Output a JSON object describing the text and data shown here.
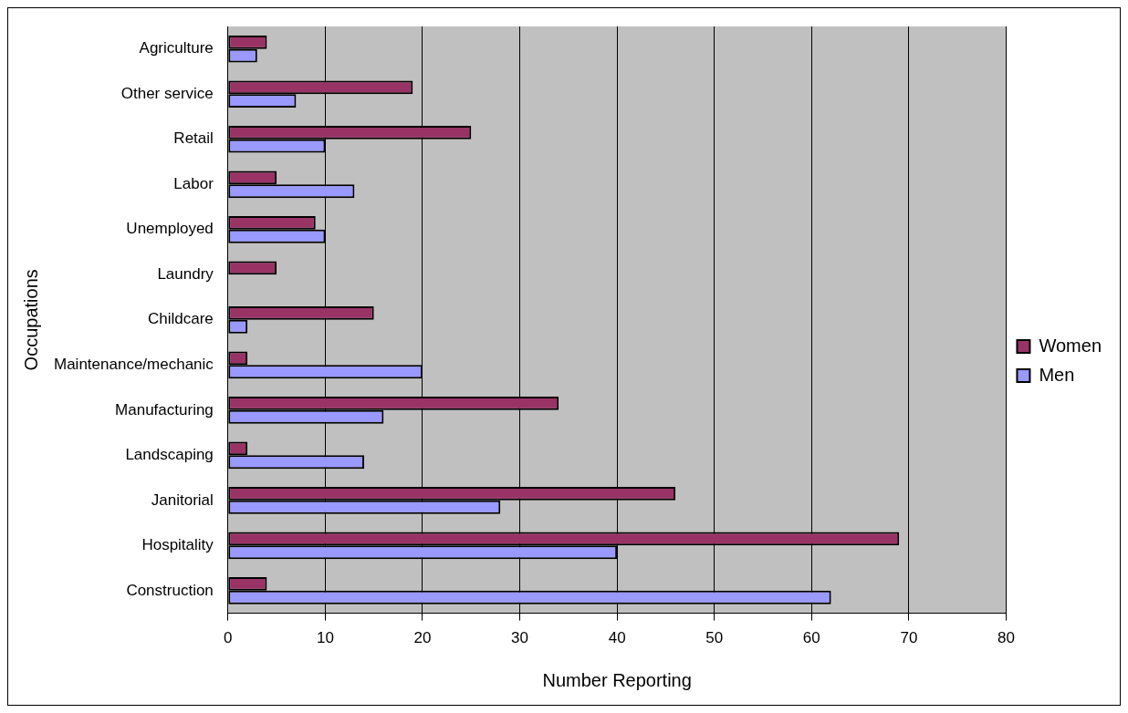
{
  "chart_data": {
    "type": "bar",
    "orientation": "horizontal",
    "xlabel": "Number Reporting",
    "ylabel": "Occupations",
    "categories": [
      "Agriculture",
      "Other service",
      "Retail",
      "Labor",
      "Unemployed",
      "Laundry",
      "Childcare",
      "Maintenance/mechanic",
      "Manufacturing",
      "Landscaping",
      "Janitorial",
      "Hospitality",
      "Construction"
    ],
    "series": [
      {
        "name": "Women",
        "color": "#993366",
        "values": [
          4,
          19,
          25,
          5,
          9,
          5,
          15,
          2,
          34,
          2,
          46,
          69,
          4
        ]
      },
      {
        "name": "Men",
        "color": "#9999ff",
        "values": [
          3,
          7,
          10,
          13,
          10,
          null,
          2,
          20,
          16,
          14,
          28,
          40,
          62
        ]
      }
    ],
    "xlim": [
      0,
      80
    ],
    "xticks": [
      0,
      10,
      20,
      30,
      40,
      50,
      60,
      70,
      80
    ],
    "grid": "x",
    "legend": "right"
  }
}
